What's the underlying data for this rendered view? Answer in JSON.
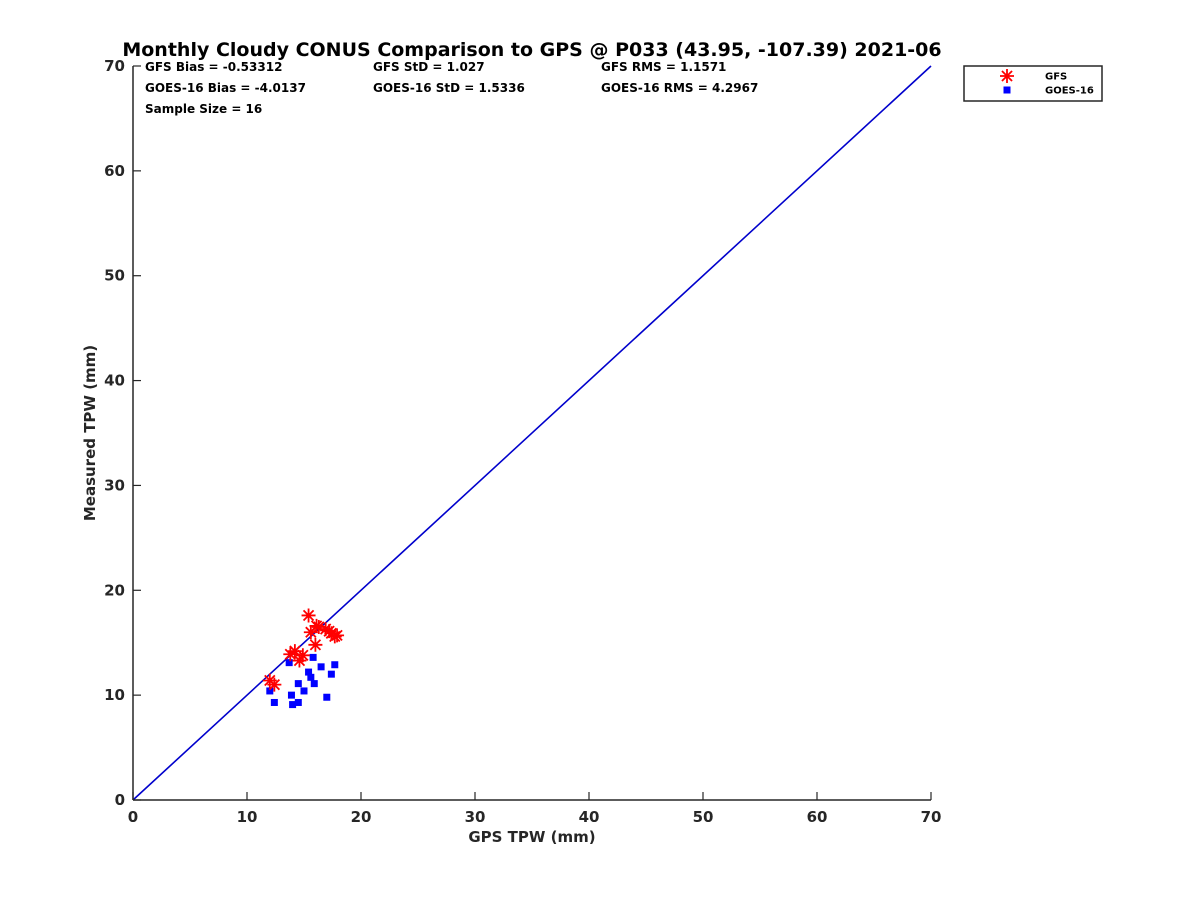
{
  "chart_data": {
    "type": "scatter",
    "title": "Monthly Cloudy CONUS Comparison to GPS @ P033 (43.95, -107.39) 2021-06",
    "xlabel": "GPS TPW (mm)",
    "ylabel": "Measured TPW (mm)",
    "xlim": [
      0,
      70
    ],
    "ylim": [
      0,
      70
    ],
    "xticks": [
      0,
      10,
      20,
      30,
      40,
      50,
      60,
      70
    ],
    "yticks": [
      0,
      10,
      20,
      30,
      40,
      50,
      60,
      70
    ],
    "grid": false,
    "legend_position": "outside-top-right",
    "reference_line": {
      "from": [
        0,
        0
      ],
      "to": [
        70,
        70
      ],
      "color": "#0000cc"
    },
    "stats": [
      [
        "GFS Bias = -0.53312",
        "GFS StD = 1.027",
        "GFS RMS = 1.1571"
      ],
      [
        "GOES-16 Bias = -4.0137",
        "GOES-16 StD = 1.5336",
        "GOES-16 RMS = 4.2967"
      ],
      [
        "Sample Size = 16"
      ]
    ],
    "series": [
      {
        "name": "GFS",
        "marker": "asterisk",
        "color": "#ff0000",
        "points": [
          [
            12.0,
            11.4
          ],
          [
            12.4,
            11.0
          ],
          [
            13.8,
            13.9
          ],
          [
            14.2,
            14.2
          ],
          [
            14.6,
            13.3
          ],
          [
            14.9,
            13.8
          ],
          [
            15.4,
            17.6
          ],
          [
            15.6,
            16.0
          ],
          [
            16.0,
            14.8
          ],
          [
            16.1,
            16.6
          ],
          [
            16.3,
            16.5
          ],
          [
            16.9,
            16.3
          ],
          [
            17.2,
            16.1
          ],
          [
            17.4,
            15.9
          ],
          [
            17.7,
            15.6
          ],
          [
            17.9,
            15.7
          ]
        ]
      },
      {
        "name": "GOES-16",
        "marker": "square",
        "color": "#0000ff",
        "points": [
          [
            12.0,
            10.4
          ],
          [
            12.4,
            9.3
          ],
          [
            13.7,
            13.1
          ],
          [
            13.9,
            10.0
          ],
          [
            14.0,
            9.1
          ],
          [
            14.5,
            9.3
          ],
          [
            14.5,
            11.1
          ],
          [
            15.0,
            10.4
          ],
          [
            15.4,
            12.2
          ],
          [
            15.6,
            11.7
          ],
          [
            15.8,
            13.6
          ],
          [
            15.9,
            11.1
          ],
          [
            16.5,
            12.7
          ],
          [
            17.0,
            9.8
          ],
          [
            17.4,
            12.0
          ],
          [
            17.7,
            12.9
          ]
        ]
      }
    ]
  }
}
